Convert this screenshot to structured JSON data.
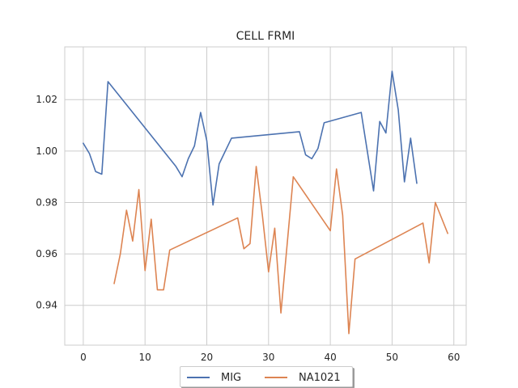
{
  "chart_data": {
    "type": "line",
    "title": "CELL FRMI",
    "xlabel": "",
    "ylabel": "",
    "xlim": [
      -3,
      62
    ],
    "ylim": [
      0.9245,
      1.0405
    ],
    "xticks": [
      0,
      10,
      20,
      30,
      40,
      50,
      60
    ],
    "yticks": [
      0.94,
      0.96,
      0.98,
      1.0,
      1.02
    ],
    "xtick_labels": [
      "0",
      "10",
      "20",
      "30",
      "40",
      "50",
      "60"
    ],
    "ytick_labels": [
      "0.94",
      "0.96",
      "0.98",
      "1.00",
      "1.02"
    ],
    "grid": true,
    "legend_position": "bottom-center",
    "series": [
      {
        "name": "MIG",
        "color": "#4c72b0",
        "x": [
          0,
          1,
          2,
          3,
          4,
          15,
          16,
          17,
          18,
          19,
          20,
          21,
          22,
          24,
          35,
          36,
          37,
          38,
          39,
          45,
          47,
          48,
          49,
          50,
          51,
          52,
          53,
          54
        ],
        "y": [
          1.003,
          0.999,
          0.992,
          0.991,
          1.027,
          0.994,
          0.99,
          0.997,
          1.002,
          1.015,
          1.004,
          0.979,
          0.995,
          1.005,
          1.0075,
          0.9985,
          0.997,
          1.001,
          1.011,
          1.015,
          0.9845,
          1.0115,
          1.007,
          1.031,
          1.016,
          0.988,
          1.005,
          0.9875
        ]
      },
      {
        "name": "NA1021",
        "color": "#dd8452",
        "x": [
          5,
          6,
          7,
          8,
          9,
          10,
          11,
          12,
          13,
          14,
          25,
          26,
          27,
          28,
          29,
          30,
          31,
          32,
          34,
          40,
          41,
          42,
          43,
          44,
          55,
          56,
          57,
          59
        ],
        "y": [
          0.9485,
          0.96,
          0.977,
          0.965,
          0.985,
          0.9535,
          0.9735,
          0.946,
          0.946,
          0.9615,
          0.974,
          0.962,
          0.964,
          0.994,
          0.975,
          0.953,
          0.97,
          0.937,
          0.99,
          0.969,
          0.993,
          0.975,
          0.929,
          0.958,
          0.972,
          0.9565,
          0.98,
          0.968
        ]
      }
    ]
  }
}
